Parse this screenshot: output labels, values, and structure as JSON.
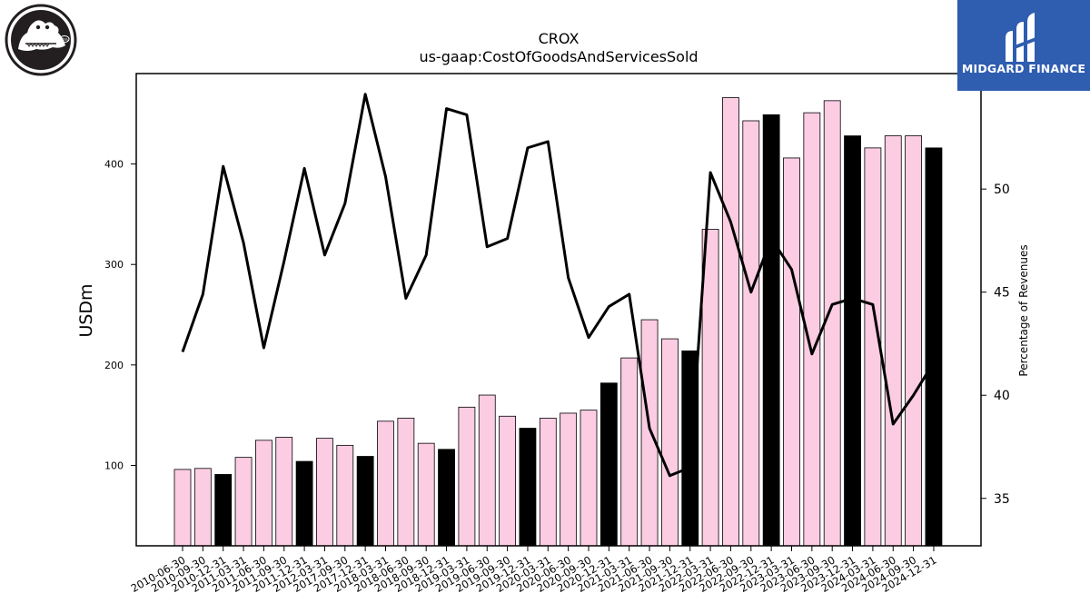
{
  "brand": {
    "name": "MIDGARD FINANCE"
  },
  "colors": {
    "highlight_bar": "#000000",
    "normal_bar": "#fccce3",
    "line": "#000000"
  },
  "chart_data": {
    "type": "bar",
    "title": "CROX",
    "subtitle": "us-gaap:CostOfGoodsAndServicesSold",
    "ylabel": "USDm",
    "y2label": "Percentage of Revenues",
    "ylim": [
      20,
      490
    ],
    "y2lim": [
      32.7,
      55.6
    ],
    "yticks": [
      100,
      200,
      300,
      400
    ],
    "y2ticks": [
      35,
      40,
      45,
      50
    ],
    "categories": [
      "2010-06-30",
      "2010-09-30",
      "2010-12-31",
      "2011-03-31",
      "2011-06-30",
      "2011-09-30",
      "2011-12-31",
      "2012-03-31",
      "2017-09-30",
      "2017-12-31",
      "2018-03-31",
      "2018-06-30",
      "2018-09-30",
      "2018-12-31",
      "2019-03-31",
      "2019-06-30",
      "2019-09-30",
      "2019-12-31",
      "2020-03-31",
      "2020-06-30",
      "2020-09-30",
      "2020-12-31",
      "2021-03-31",
      "2021-06-30",
      "2021-09-30",
      "2021-12-31",
      "2022-03-31",
      "2022-06-30",
      "2022-09-30",
      "2022-12-31",
      "2023-03-31",
      "2023-06-30",
      "2023-09-30",
      "2023-12-31",
      "2024-03-31",
      "2024-06-30",
      "2024-09-30",
      "2024-12-31"
    ],
    "series": [
      {
        "type": "bar",
        "axis": "left",
        "values": [
          96,
          97,
          91,
          108,
          125,
          128,
          104,
          127,
          120,
          109,
          144,
          147,
          122,
          116,
          158,
          170,
          149,
          137,
          147,
          152,
          155,
          182,
          207,
          245,
          226,
          214,
          335,
          466,
          443,
          449,
          406,
          451,
          463,
          428,
          416,
          428,
          428,
          416
        ],
        "highlighted": [
          false,
          false,
          true,
          false,
          false,
          false,
          true,
          false,
          false,
          true,
          false,
          false,
          false,
          true,
          false,
          false,
          false,
          true,
          false,
          false,
          false,
          true,
          false,
          false,
          false,
          true,
          false,
          false,
          false,
          true,
          false,
          false,
          false,
          true,
          false,
          false,
          false,
          true
        ]
      },
      {
        "type": "line",
        "axis": "right",
        "values": [
          42.1,
          44.9,
          51.1,
          47.4,
          42.3,
          46.5,
          51.0,
          46.8,
          49.3,
          54.6,
          50.6,
          44.7,
          46.8,
          53.9,
          53.6,
          47.2,
          47.6,
          52.0,
          52.3,
          45.7,
          42.8,
          44.3,
          44.9,
          38.4,
          36.1,
          36.5,
          50.8,
          48.4,
          45.0,
          47.6,
          46.1,
          42.0,
          44.4,
          44.7,
          44.4,
          38.6,
          40.0,
          41.6
        ]
      }
    ],
    "grid": false,
    "legend": "none"
  }
}
